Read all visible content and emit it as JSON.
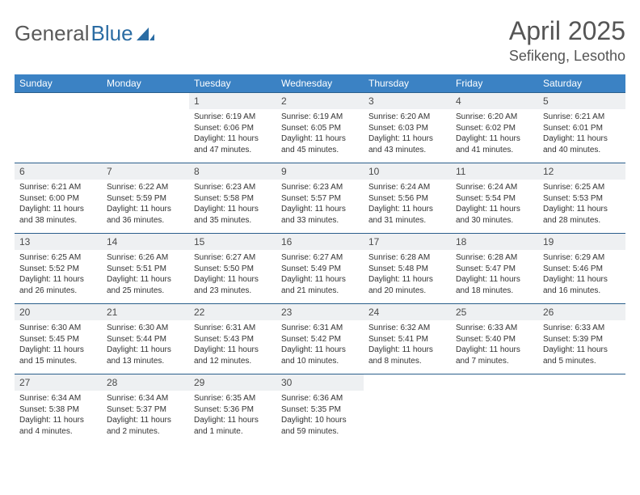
{
  "logo": {
    "text1": "General",
    "text2": "Blue"
  },
  "title": "April 2025",
  "location": "Sefikeng, Lesotho",
  "colors": {
    "header_bg": "#3b82c4",
    "header_text": "#ffffff",
    "row_border": "#2b5f8c",
    "daynum_bg": "#eef0f2",
    "logo_gray": "#5a5a5a",
    "logo_blue": "#2b6ca3"
  },
  "weekdays": [
    "Sunday",
    "Monday",
    "Tuesday",
    "Wednesday",
    "Thursday",
    "Friday",
    "Saturday"
  ],
  "weeks": [
    [
      {
        "empty": true
      },
      {
        "empty": true
      },
      {
        "n": "1",
        "sr": "Sunrise: 6:19 AM",
        "ss": "Sunset: 6:06 PM",
        "d1": "Daylight: 11 hours",
        "d2": "and 47 minutes."
      },
      {
        "n": "2",
        "sr": "Sunrise: 6:19 AM",
        "ss": "Sunset: 6:05 PM",
        "d1": "Daylight: 11 hours",
        "d2": "and 45 minutes."
      },
      {
        "n": "3",
        "sr": "Sunrise: 6:20 AM",
        "ss": "Sunset: 6:03 PM",
        "d1": "Daylight: 11 hours",
        "d2": "and 43 minutes."
      },
      {
        "n": "4",
        "sr": "Sunrise: 6:20 AM",
        "ss": "Sunset: 6:02 PM",
        "d1": "Daylight: 11 hours",
        "d2": "and 41 minutes."
      },
      {
        "n": "5",
        "sr": "Sunrise: 6:21 AM",
        "ss": "Sunset: 6:01 PM",
        "d1": "Daylight: 11 hours",
        "d2": "and 40 minutes."
      }
    ],
    [
      {
        "n": "6",
        "sr": "Sunrise: 6:21 AM",
        "ss": "Sunset: 6:00 PM",
        "d1": "Daylight: 11 hours",
        "d2": "and 38 minutes."
      },
      {
        "n": "7",
        "sr": "Sunrise: 6:22 AM",
        "ss": "Sunset: 5:59 PM",
        "d1": "Daylight: 11 hours",
        "d2": "and 36 minutes."
      },
      {
        "n": "8",
        "sr": "Sunrise: 6:23 AM",
        "ss": "Sunset: 5:58 PM",
        "d1": "Daylight: 11 hours",
        "d2": "and 35 minutes."
      },
      {
        "n": "9",
        "sr": "Sunrise: 6:23 AM",
        "ss": "Sunset: 5:57 PM",
        "d1": "Daylight: 11 hours",
        "d2": "and 33 minutes."
      },
      {
        "n": "10",
        "sr": "Sunrise: 6:24 AM",
        "ss": "Sunset: 5:56 PM",
        "d1": "Daylight: 11 hours",
        "d2": "and 31 minutes."
      },
      {
        "n": "11",
        "sr": "Sunrise: 6:24 AM",
        "ss": "Sunset: 5:54 PM",
        "d1": "Daylight: 11 hours",
        "d2": "and 30 minutes."
      },
      {
        "n": "12",
        "sr": "Sunrise: 6:25 AM",
        "ss": "Sunset: 5:53 PM",
        "d1": "Daylight: 11 hours",
        "d2": "and 28 minutes."
      }
    ],
    [
      {
        "n": "13",
        "sr": "Sunrise: 6:25 AM",
        "ss": "Sunset: 5:52 PM",
        "d1": "Daylight: 11 hours",
        "d2": "and 26 minutes."
      },
      {
        "n": "14",
        "sr": "Sunrise: 6:26 AM",
        "ss": "Sunset: 5:51 PM",
        "d1": "Daylight: 11 hours",
        "d2": "and 25 minutes."
      },
      {
        "n": "15",
        "sr": "Sunrise: 6:27 AM",
        "ss": "Sunset: 5:50 PM",
        "d1": "Daylight: 11 hours",
        "d2": "and 23 minutes."
      },
      {
        "n": "16",
        "sr": "Sunrise: 6:27 AM",
        "ss": "Sunset: 5:49 PM",
        "d1": "Daylight: 11 hours",
        "d2": "and 21 minutes."
      },
      {
        "n": "17",
        "sr": "Sunrise: 6:28 AM",
        "ss": "Sunset: 5:48 PM",
        "d1": "Daylight: 11 hours",
        "d2": "and 20 minutes."
      },
      {
        "n": "18",
        "sr": "Sunrise: 6:28 AM",
        "ss": "Sunset: 5:47 PM",
        "d1": "Daylight: 11 hours",
        "d2": "and 18 minutes."
      },
      {
        "n": "19",
        "sr": "Sunrise: 6:29 AM",
        "ss": "Sunset: 5:46 PM",
        "d1": "Daylight: 11 hours",
        "d2": "and 16 minutes."
      }
    ],
    [
      {
        "n": "20",
        "sr": "Sunrise: 6:30 AM",
        "ss": "Sunset: 5:45 PM",
        "d1": "Daylight: 11 hours",
        "d2": "and 15 minutes."
      },
      {
        "n": "21",
        "sr": "Sunrise: 6:30 AM",
        "ss": "Sunset: 5:44 PM",
        "d1": "Daylight: 11 hours",
        "d2": "and 13 minutes."
      },
      {
        "n": "22",
        "sr": "Sunrise: 6:31 AM",
        "ss": "Sunset: 5:43 PM",
        "d1": "Daylight: 11 hours",
        "d2": "and 12 minutes."
      },
      {
        "n": "23",
        "sr": "Sunrise: 6:31 AM",
        "ss": "Sunset: 5:42 PM",
        "d1": "Daylight: 11 hours",
        "d2": "and 10 minutes."
      },
      {
        "n": "24",
        "sr": "Sunrise: 6:32 AM",
        "ss": "Sunset: 5:41 PM",
        "d1": "Daylight: 11 hours",
        "d2": "and 8 minutes."
      },
      {
        "n": "25",
        "sr": "Sunrise: 6:33 AM",
        "ss": "Sunset: 5:40 PM",
        "d1": "Daylight: 11 hours",
        "d2": "and 7 minutes."
      },
      {
        "n": "26",
        "sr": "Sunrise: 6:33 AM",
        "ss": "Sunset: 5:39 PM",
        "d1": "Daylight: 11 hours",
        "d2": "and 5 minutes."
      }
    ],
    [
      {
        "n": "27",
        "sr": "Sunrise: 6:34 AM",
        "ss": "Sunset: 5:38 PM",
        "d1": "Daylight: 11 hours",
        "d2": "and 4 minutes."
      },
      {
        "n": "28",
        "sr": "Sunrise: 6:34 AM",
        "ss": "Sunset: 5:37 PM",
        "d1": "Daylight: 11 hours",
        "d2": "and 2 minutes."
      },
      {
        "n": "29",
        "sr": "Sunrise: 6:35 AM",
        "ss": "Sunset: 5:36 PM",
        "d1": "Daylight: 11 hours",
        "d2": "and 1 minute."
      },
      {
        "n": "30",
        "sr": "Sunrise: 6:36 AM",
        "ss": "Sunset: 5:35 PM",
        "d1": "Daylight: 10 hours",
        "d2": "and 59 minutes."
      },
      {
        "empty": true
      },
      {
        "empty": true
      },
      {
        "empty": true
      }
    ]
  ]
}
